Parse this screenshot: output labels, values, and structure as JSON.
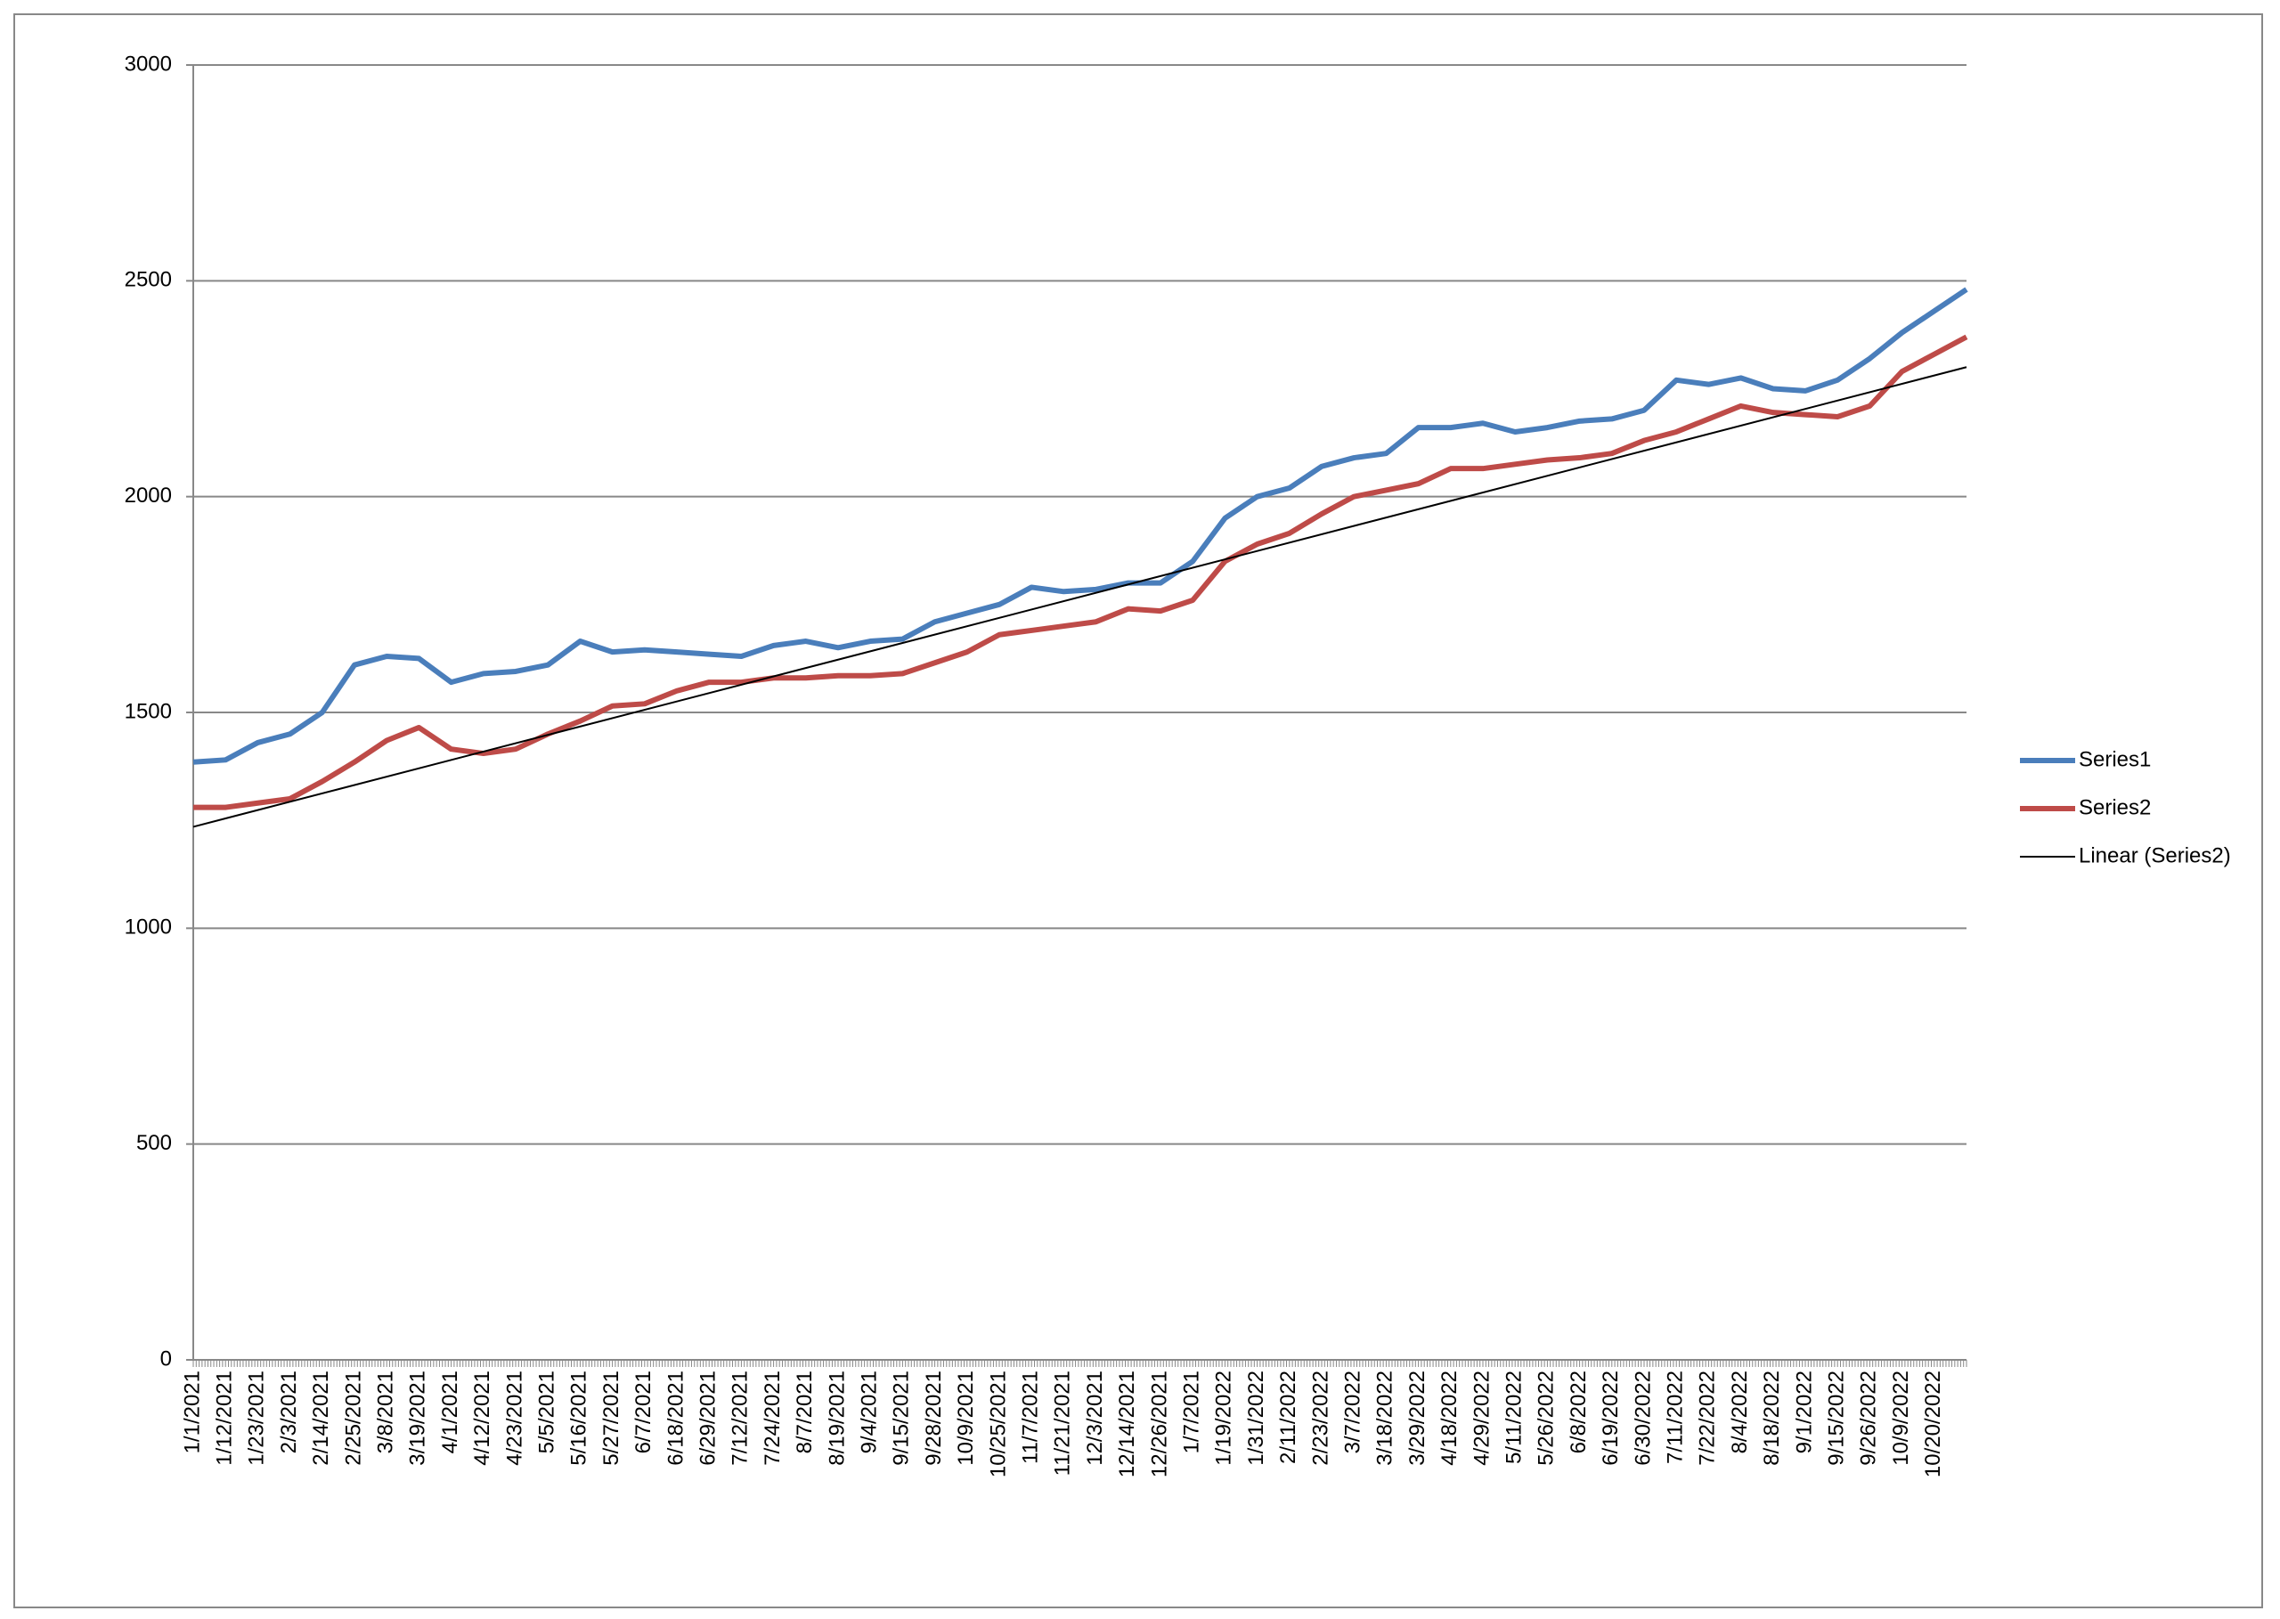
{
  "chart_data": {
    "type": "line",
    "categories": [
      "1/1/2021",
      "1/12/2021",
      "1/23/2021",
      "2/3/2021",
      "2/14/2021",
      "2/25/2021",
      "3/8/2021",
      "3/19/2021",
      "4/1/2021",
      "4/12/2021",
      "4/23/2021",
      "5/5/2021",
      "5/16/2021",
      "5/27/2021",
      "6/7/2021",
      "6/18/2021",
      "6/29/2021",
      "7/12/2021",
      "7/24/2021",
      "8/7/2021",
      "8/19/2021",
      "9/4/2021",
      "9/15/2021",
      "9/28/2021",
      "10/9/2021",
      "10/25/2021",
      "11/7/2021",
      "11/21/2021",
      "12/3/2021",
      "12/14/2021",
      "12/26/2021",
      "1/7/2021",
      "1/19/2022",
      "1/31/2022",
      "2/11/2022",
      "2/23/2022",
      "3/7/2022",
      "3/18/2022",
      "3/29/2022",
      "4/18/2022",
      "4/29/2022",
      "5/11/2022",
      "5/26/2022",
      "6/8/2022",
      "6/19/2022",
      "6/30/2022",
      "7/11/2022",
      "7/22/2022",
      "8/4/2022",
      "8/18/2022",
      "9/1/2022",
      "9/15/2022",
      "9/26/2022",
      "10/9/2022",
      "10/20/2022",
      null
    ],
    "series": [
      {
        "name": "Series1",
        "color": "#4a7ebb",
        "values": [
          1385,
          1390,
          1430,
          1450,
          1500,
          1610,
          1630,
          1625,
          1570,
          1590,
          1595,
          1610,
          1665,
          1640,
          1645,
          1640,
          1635,
          1630,
          1655,
          1665,
          1650,
          1665,
          1670,
          1710,
          1730,
          1750,
          1790,
          1780,
          1785,
          1800,
          1800,
          1850,
          1950,
          2000,
          2020,
          2070,
          2090,
          2100,
          2160,
          2160,
          2170,
          2150,
          2160,
          2175,
          2180,
          2200,
          2270,
          2260,
          2275,
          2250,
          2245,
          2270,
          2320,
          2380,
          2430,
          2480
        ]
      },
      {
        "name": "Series2",
        "color": "#be4b48",
        "values": [
          1280,
          1280,
          1290,
          1300,
          1340,
          1385,
          1435,
          1465,
          1415,
          1405,
          1415,
          1450,
          1480,
          1515,
          1520,
          1550,
          1570,
          1570,
          1580,
          1580,
          1585,
          1585,
          1590,
          1615,
          1640,
          1680,
          1690,
          1700,
          1710,
          1740,
          1735,
          1760,
          1850,
          1890,
          1915,
          1960,
          2000,
          2015,
          2030,
          2065,
          2065,
          2075,
          2085,
          2090,
          2100,
          2130,
          2150,
          2180,
          2210,
          2195,
          2190,
          2185,
          2210,
          2290,
          2330,
          2370
        ]
      }
    ],
    "trendline": {
      "name": "Linear (Series2)",
      "color": "#000000",
      "values": [
        1235,
        2300
      ]
    },
    "ylim": [
      0,
      3000
    ],
    "yticks": [
      0,
      500,
      1000,
      1500,
      2000,
      2500,
      3000
    ],
    "grid": true,
    "legend": "right"
  }
}
